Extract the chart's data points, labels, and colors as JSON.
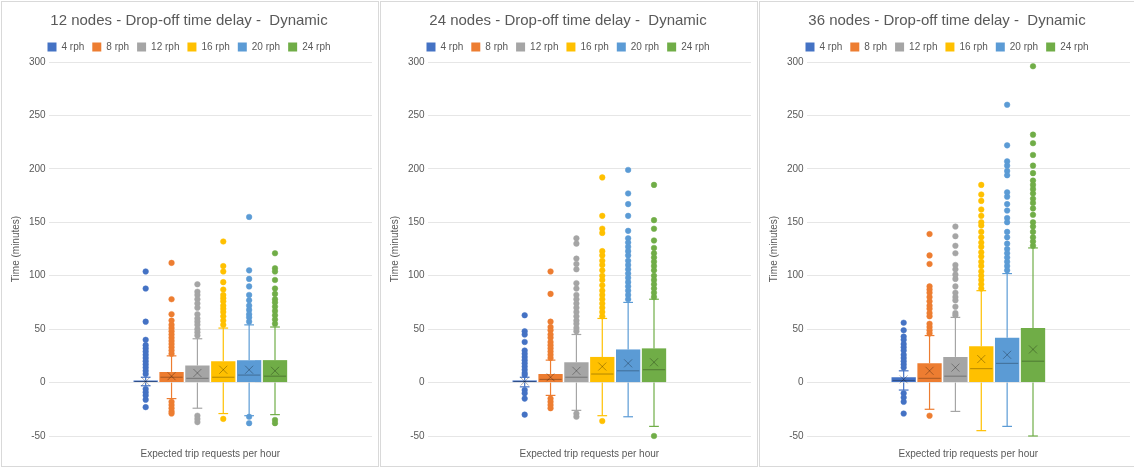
{
  "chart_data": [
    {
      "type": "box",
      "title": "12 nodes - Drop-off time delay -  Dynamic",
      "xlabel": "Expected trip requests per hour",
      "ylabel": "Time (minutes)",
      "categories": [
        null
      ],
      "ylim": [
        -50,
        300
      ],
      "yticks": [
        -50,
        0,
        50,
        100,
        150,
        200,
        250,
        300
      ],
      "grid": "y",
      "legend": "top",
      "tick_labels": "y",
      "marker": "circle",
      "series": [
        {
          "name": "4 rph",
          "color": "#4472c4",
          "boxes": [
            {
              "low": -3,
              "q1": 0,
              "median": 1,
              "q3": 2,
              "high": 5,
              "mean": 1,
              "outliers": [
                104,
                88,
                57,
                40,
                35,
                32,
                29,
                26,
                23,
                20,
                17,
                14,
                11,
                8,
                -6,
                -9,
                -12,
                -16,
                -23
              ]
            }
          ]
        },
        {
          "name": "8 rph",
          "color": "#ed7d31",
          "boxes": [
            {
              "low": -15,
              "q1": 0,
              "median": 5,
              "q3": 10,
              "high": 25,
              "mean": 6,
              "outliers": [
                112,
                78,
                64,
                58,
                54,
                51,
                48,
                45,
                42,
                39,
                36,
                33,
                30,
                27,
                -18,
                -21,
                -24,
                -27,
                -29
              ]
            }
          ]
        },
        {
          "name": "12 rph",
          "color": "#a5a5a5",
          "boxes": [
            {
              "low": -24,
              "q1": 0,
              "median": 4,
              "q3": 16,
              "high": 41,
              "mean": 9,
              "outliers": [
                92,
                85,
                82,
                78,
                74,
                70,
                64,
                60,
                57,
                54,
                50,
                47,
                44,
                -31,
                -34,
                -37
              ]
            }
          ]
        },
        {
          "name": "16 rph",
          "color": "#ffc000",
          "boxes": [
            {
              "low": -29,
              "q1": 0,
              "median": 5,
              "q3": 20,
              "high": 51,
              "mean": 12,
              "outliers": [
                132,
                109,
                104,
                94,
                87,
                82,
                79,
                76,
                72,
                69,
                66,
                62,
                58,
                54,
                -34
              ]
            }
          ]
        },
        {
          "name": "20 rph",
          "color": "#5b9bd5",
          "boxes": [
            {
              "low": -31,
              "q1": 0,
              "median": 7,
              "q3": 21,
              "high": 54,
              "mean": 12,
              "outliers": [
                155,
                105,
                97,
                90,
                82,
                77,
                72,
                68,
                64,
                61,
                57,
                -32,
                -38
              ]
            }
          ]
        },
        {
          "name": "24 rph",
          "color": "#70ad47",
          "boxes": [
            {
              "low": -30,
              "q1": 0,
              "median": 6,
              "q3": 21,
              "high": 52,
              "mean": 11,
              "outliers": [
                121,
                107,
                104,
                96,
                88,
                83,
                78,
                75,
                71,
                67,
                63,
                59,
                55,
                -35,
                -38
              ]
            }
          ]
        }
      ]
    },
    {
      "type": "box",
      "title": "24 nodes - Drop-off time delay -  Dynamic",
      "xlabel": "Expected trip requests per hour",
      "ylabel": "Time (minutes)",
      "categories": [
        null
      ],
      "ylim": [
        -50,
        300
      ],
      "yticks": [
        -50,
        0,
        50,
        100,
        150,
        200,
        250,
        300
      ],
      "grid": "y",
      "legend": "top",
      "tick_labels": "y",
      "marker": "circle",
      "series": [
        {
          "name": "4 rph",
          "color": "#4472c4",
          "boxes": [
            {
              "low": -4,
              "q1": 0,
              "median": 1,
              "q3": 2,
              "high": 5,
              "mean": 1,
              "outliers": [
                63,
                48,
                45,
                38,
                30,
                27,
                24,
                21,
                18,
                15,
                12,
                9,
                7,
                -7,
                -10,
                -15,
                -30
              ]
            }
          ]
        },
        {
          "name": "8 rph",
          "color": "#ed7d31",
          "boxes": [
            {
              "low": -12,
              "q1": 0,
              "median": 3,
              "q3": 8,
              "high": 21,
              "mean": 5,
              "outliers": [
                104,
                83,
                57,
                52,
                49,
                45,
                42,
                38,
                35,
                32,
                29,
                26,
                23,
                -15,
                -18,
                -21,
                -24
              ]
            }
          ]
        },
        {
          "name": "12 rph",
          "color": "#a5a5a5",
          "boxes": [
            {
              "low": -26,
              "q1": 0,
              "median": 5,
              "q3": 19,
              "high": 45,
              "mean": 11,
              "outliers": [
                135,
                130,
                116,
                111,
                106,
                93,
                88,
                82,
                78,
                74,
                70,
                66,
                62,
                58,
                55,
                51,
                48,
                -29,
                -32
              ]
            }
          ]
        },
        {
          "name": "16 rph",
          "color": "#ffc000",
          "boxes": [
            {
              "low": -31,
              "q1": 0,
              "median": 8,
              "q3": 24,
              "high": 60,
              "mean": 15,
              "outliers": [
                192,
                156,
                144,
                140,
                123,
                119,
                114,
                110,
                105,
                100,
                96,
                91,
                86,
                82,
                78,
                74,
                70,
                66,
                62,
                -36
              ]
            }
          ]
        },
        {
          "name": "20 rph",
          "color": "#5b9bd5",
          "boxes": [
            {
              "low": -32,
              "q1": 0,
              "median": 11,
              "q3": 31,
              "high": 75,
              "mean": 18,
              "outliers": [
                199,
                177,
                167,
                156,
                142,
                135,
                131,
                127,
                123,
                119,
                114,
                110,
                106,
                102,
                98,
                94,
                90,
                86,
                82,
                78
              ]
            }
          ]
        },
        {
          "name": "24 rph",
          "color": "#70ad47",
          "boxes": [
            {
              "low": -41,
              "q1": 0,
              "median": 12,
              "q3": 32,
              "high": 78,
              "mean": 19,
              "outliers": [
                185,
                152,
                144,
                133,
                126,
                121,
                117,
                113,
                109,
                105,
                100,
                96,
                92,
                88,
                84,
                80,
                -50
              ]
            }
          ]
        }
      ]
    },
    {
      "type": "box",
      "title": "36 nodes - Drop-off time delay -  Dynamic",
      "xlabel": "Expected trip requests per hour",
      "ylabel": "Time (minutes)",
      "categories": [
        null
      ],
      "ylim": [
        -50,
        300
      ],
      "yticks": [
        -50,
        0,
        50,
        100,
        150,
        200,
        250,
        300
      ],
      "grid": "y",
      "legend": "top",
      "tick_labels": "y",
      "marker": "circle",
      "series": [
        {
          "name": "4 rph",
          "color": "#4472c4",
          "boxes": [
            {
              "low": -7,
              "q1": 0,
              "median": 2,
              "q3": 5,
              "high": 11,
              "mean": 3,
              "outliers": [
                56,
                49,
                43,
                40,
                36,
                33,
                30,
                26,
                23,
                20,
                17,
                14,
                -10,
                -14,
                -18,
                -29
              ]
            }
          ]
        },
        {
          "name": "8 rph",
          "color": "#ed7d31",
          "boxes": [
            {
              "low": -25,
              "q1": 0,
              "median": 4,
              "q3": 18,
              "high": 44,
              "mean": 11,
              "outliers": [
                139,
                119,
                111,
                90,
                87,
                84,
                80,
                76,
                72,
                69,
                65,
                62,
                55,
                52,
                49,
                46,
                -31
              ]
            }
          ]
        },
        {
          "name": "12 rph",
          "color": "#a5a5a5",
          "boxes": [
            {
              "low": -27,
              "q1": 0,
              "median": 6,
              "q3": 24,
              "high": 61,
              "mean": 14,
              "outliers": [
                146,
                137,
                128,
                121,
                110,
                106,
                101,
                97,
                90,
                84,
                80,
                77,
                71,
                65,
                63
              ]
            }
          ]
        },
        {
          "name": "16 rph",
          "color": "#ffc000",
          "boxes": [
            {
              "low": -45,
              "q1": 0,
              "median": 13,
              "q3": 34,
              "high": 86,
              "mean": 22,
              "outliers": [
                185,
                176,
                170,
                162,
                156,
                150,
                147,
                141,
                136,
                131,
                127,
                122,
                118,
                113,
                109,
                104,
                100,
                96,
                92,
                88
              ]
            }
          ]
        },
        {
          "name": "20 rph",
          "color": "#5b9bd5",
          "boxes": [
            {
              "low": -41,
              "q1": 0,
              "median": 18,
              "q3": 42,
              "high": 102,
              "mean": 26,
              "outliers": [
                260,
                222,
                207,
                203,
                198,
                194,
                178,
                174,
                167,
                161,
                154,
                150,
                141,
                136,
                130,
                125,
                121,
                117,
                113,
                109,
                105
              ]
            }
          ]
        },
        {
          "name": "24 rph",
          "color": "#70ad47",
          "boxes": [
            {
              "low": -50,
              "q1": 0,
              "median": 20,
              "q3": 51,
              "high": 126,
              "mean": 31,
              "outliers": [
                296,
                232,
                224,
                213,
                203,
                196,
                189,
                185,
                181,
                177,
                172,
                168,
                163,
                157,
                150,
                146,
                141,
                136,
                132,
                128
              ]
            }
          ]
        }
      ]
    }
  ]
}
